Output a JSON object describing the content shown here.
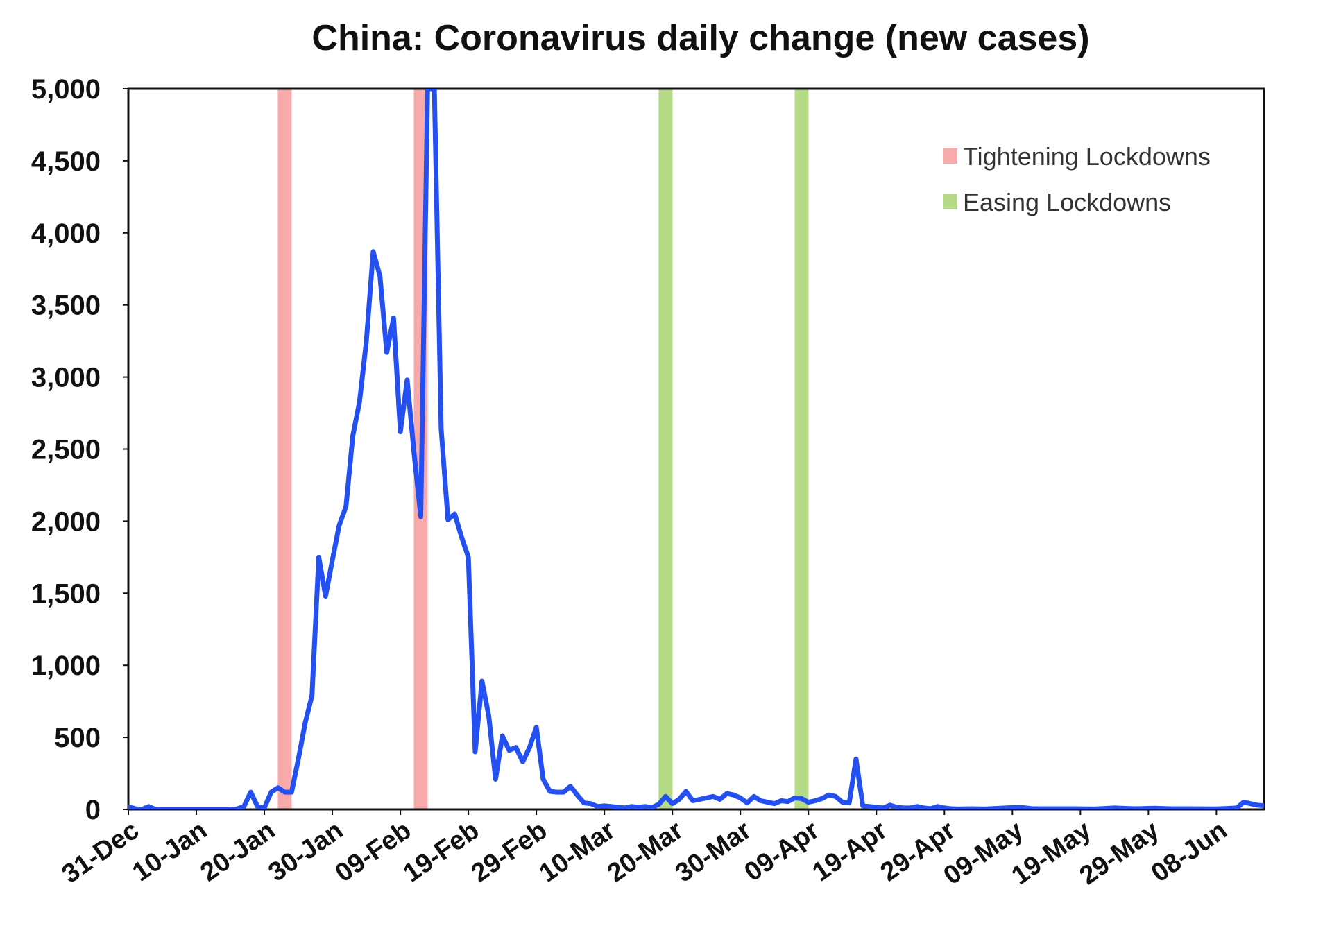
{
  "chart_data": {
    "type": "line",
    "title": "China: Coronavirus daily change (new cases)",
    "xlabel": "",
    "ylabel": "",
    "ylim": [
      0,
      5000
    ],
    "yticks": [
      0,
      500,
      1000,
      1500,
      2000,
      2500,
      3000,
      3500,
      4000,
      4500,
      5000
    ],
    "ytick_labels": [
      "0",
      "500",
      "1,000",
      "1,500",
      "2,000",
      "2,500",
      "3,000",
      "3,500",
      "4,000",
      "4,500",
      "5,000"
    ],
    "xlim": [
      "2019-12-31",
      "2020-06-15"
    ],
    "xticks": [
      "2019-12-31",
      "2020-01-10",
      "2020-01-20",
      "2020-01-30",
      "2020-02-09",
      "2020-02-19",
      "2020-02-29",
      "2020-03-10",
      "2020-03-20",
      "2020-03-30",
      "2020-04-09",
      "2020-04-19",
      "2020-04-29",
      "2020-05-09",
      "2020-05-19",
      "2020-05-29",
      "2020-06-08"
    ],
    "xtick_labels": [
      "31-Dec",
      "10-Jan",
      "20-Jan",
      "30-Jan",
      "09-Feb",
      "19-Feb",
      "29-Feb",
      "10-Mar",
      "20-Mar",
      "30-Mar",
      "09-Apr",
      "19-Apr",
      "29-Apr",
      "09-May",
      "19-May",
      "29-May",
      "08-Jun"
    ],
    "grid": false,
    "legend_position": "top-right",
    "series": [
      {
        "color": "#2450f2",
        "points": [
          [
            "2019-12-31",
            20
          ],
          [
            "2020-01-01",
            5
          ],
          [
            "2020-01-02",
            0
          ],
          [
            "2020-01-03",
            20
          ],
          [
            "2020-01-04",
            0
          ],
          [
            "2020-01-05",
            0
          ],
          [
            "2020-01-10",
            0
          ],
          [
            "2020-01-15",
            0
          ],
          [
            "2020-01-16",
            4
          ],
          [
            "2020-01-17",
            20
          ],
          [
            "2020-01-18",
            120
          ],
          [
            "2020-01-19",
            20
          ],
          [
            "2020-01-20",
            10
          ],
          [
            "2020-01-21",
            120
          ],
          [
            "2020-01-22",
            150
          ],
          [
            "2020-01-23",
            120
          ],
          [
            "2020-01-24",
            120
          ],
          [
            "2020-01-25",
            350
          ],
          [
            "2020-01-26",
            600
          ],
          [
            "2020-01-27",
            790
          ],
          [
            "2020-01-28",
            1750
          ],
          [
            "2020-01-29",
            1480
          ],
          [
            "2020-01-30",
            1730
          ],
          [
            "2020-01-31",
            1970
          ],
          [
            "2020-02-01",
            2100
          ],
          [
            "2020-02-02",
            2590
          ],
          [
            "2020-02-03",
            2830
          ],
          [
            "2020-02-04",
            3250
          ],
          [
            "2020-02-05",
            3870
          ],
          [
            "2020-02-06",
            3700
          ],
          [
            "2020-02-07",
            3170
          ],
          [
            "2020-02-08",
            3410
          ],
          [
            "2020-02-09",
            2620
          ],
          [
            "2020-02-10",
            2980
          ],
          [
            "2020-02-11",
            2480
          ],
          [
            "2020-02-12",
            2030
          ],
          [
            "2020-02-13",
            5000
          ],
          [
            "2020-02-14",
            5000
          ],
          [
            "2020-02-15",
            2640
          ],
          [
            "2020-02-16",
            2010
          ],
          [
            "2020-02-17",
            2050
          ],
          [
            "2020-02-18",
            1890
          ],
          [
            "2020-02-19",
            1750
          ],
          [
            "2020-02-20",
            400
          ],
          [
            "2020-02-21",
            890
          ],
          [
            "2020-02-22",
            650
          ],
          [
            "2020-02-23",
            210
          ],
          [
            "2020-02-24",
            510
          ],
          [
            "2020-02-25",
            410
          ],
          [
            "2020-02-26",
            430
          ],
          [
            "2020-02-27",
            330
          ],
          [
            "2020-02-28",
            430
          ],
          [
            "2020-02-29",
            570
          ],
          [
            "2020-03-01",
            210
          ],
          [
            "2020-03-02",
            125
          ],
          [
            "2020-03-03",
            120
          ],
          [
            "2020-03-04",
            120
          ],
          [
            "2020-03-05",
            160
          ],
          [
            "2020-03-06",
            100
          ],
          [
            "2020-03-07",
            45
          ],
          [
            "2020-03-08",
            40
          ],
          [
            "2020-03-09",
            20
          ],
          [
            "2020-03-10",
            25
          ],
          [
            "2020-03-11",
            20
          ],
          [
            "2020-03-12",
            15
          ],
          [
            "2020-03-13",
            10
          ],
          [
            "2020-03-14",
            20
          ],
          [
            "2020-03-15",
            15
          ],
          [
            "2020-03-16",
            20
          ],
          [
            "2020-03-17",
            13
          ],
          [
            "2020-03-18",
            35
          ],
          [
            "2020-03-19",
            90
          ],
          [
            "2020-03-20",
            40
          ],
          [
            "2020-03-21",
            70
          ],
          [
            "2020-03-22",
            125
          ],
          [
            "2020-03-23",
            60
          ],
          [
            "2020-03-24",
            70
          ],
          [
            "2020-03-25",
            80
          ],
          [
            "2020-03-26",
            90
          ],
          [
            "2020-03-27",
            70
          ],
          [
            "2020-03-28",
            110
          ],
          [
            "2020-03-29",
            100
          ],
          [
            "2020-03-30",
            80
          ],
          [
            "2020-03-31",
            45
          ],
          [
            "2020-04-01",
            90
          ],
          [
            "2020-04-02",
            60
          ],
          [
            "2020-04-03",
            50
          ],
          [
            "2020-04-04",
            40
          ],
          [
            "2020-04-05",
            60
          ],
          [
            "2020-04-06",
            55
          ],
          [
            "2020-04-07",
            80
          ],
          [
            "2020-04-08",
            75
          ],
          [
            "2020-04-09",
            50
          ],
          [
            "2020-04-10",
            60
          ],
          [
            "2020-04-11",
            75
          ],
          [
            "2020-04-12",
            100
          ],
          [
            "2020-04-13",
            90
          ],
          [
            "2020-04-14",
            50
          ],
          [
            "2020-04-15",
            45
          ],
          [
            "2020-04-16",
            350
          ],
          [
            "2020-04-17",
            25
          ],
          [
            "2020-04-18",
            20
          ],
          [
            "2020-04-19",
            15
          ],
          [
            "2020-04-20",
            10
          ],
          [
            "2020-04-21",
            30
          ],
          [
            "2020-04-22",
            15
          ],
          [
            "2020-04-23",
            10
          ],
          [
            "2020-04-24",
            10
          ],
          [
            "2020-04-25",
            20
          ],
          [
            "2020-04-26",
            10
          ],
          [
            "2020-04-27",
            5
          ],
          [
            "2020-04-28",
            20
          ],
          [
            "2020-04-29",
            10
          ],
          [
            "2020-04-30",
            5
          ],
          [
            "2020-05-01",
            3
          ],
          [
            "2020-05-03",
            5
          ],
          [
            "2020-05-05",
            3
          ],
          [
            "2020-05-08",
            10
          ],
          [
            "2020-05-10",
            15
          ],
          [
            "2020-05-12",
            5
          ],
          [
            "2020-05-15",
            5
          ],
          [
            "2020-05-18",
            5
          ],
          [
            "2020-05-21",
            3
          ],
          [
            "2020-05-24",
            10
          ],
          [
            "2020-05-27",
            5
          ],
          [
            "2020-05-30",
            8
          ],
          [
            "2020-06-01",
            5
          ],
          [
            "2020-06-04",
            5
          ],
          [
            "2020-06-08",
            4
          ],
          [
            "2020-06-11",
            10
          ],
          [
            "2020-06-12",
            50
          ],
          [
            "2020-06-13",
            40
          ],
          [
            "2020-06-14",
            30
          ],
          [
            "2020-06-15",
            25
          ]
        ]
      }
    ],
    "legend": [
      {
        "label": "Tightening Lockdowns",
        "color": "#f8a9a9"
      },
      {
        "label": "Easing Lockdowns",
        "color": "#b5db87"
      }
    ],
    "bands": [
      {
        "kind": "tightening",
        "date": "2020-01-23",
        "color": "#f8a9a9"
      },
      {
        "kind": "tightening",
        "date": "2020-02-12",
        "color": "#f8a9a9"
      },
      {
        "kind": "easing",
        "date": "2020-03-19",
        "color": "#b5db87"
      },
      {
        "kind": "easing",
        "date": "2020-04-08",
        "color": "#b5db87"
      }
    ]
  }
}
